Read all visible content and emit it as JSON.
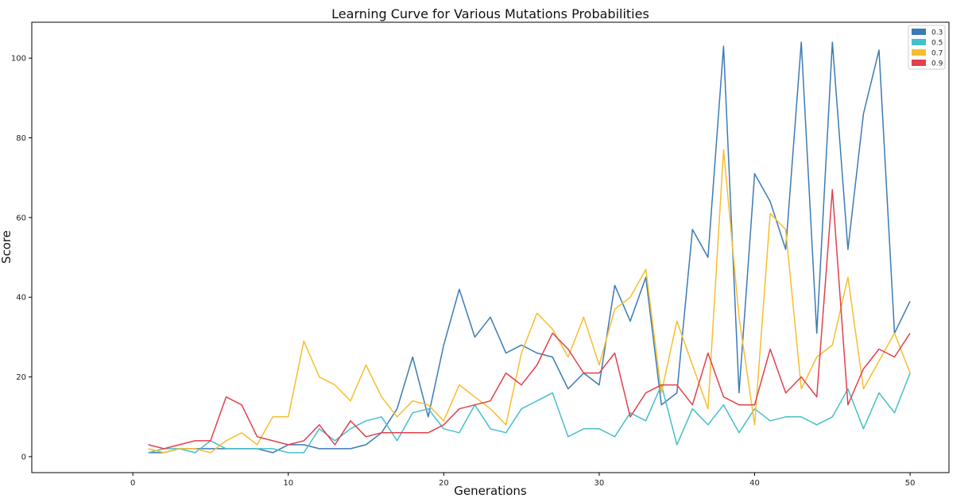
{
  "chart_data": {
    "type": "line",
    "title": "Learning Curve for Various Mutations Probabilities",
    "xlabel": "Generations",
    "ylabel": "Score",
    "xlim": [
      -6.5,
      52.5
    ],
    "ylim": [
      -4,
      109
    ],
    "xticks": [
      0,
      10,
      20,
      30,
      40,
      50
    ],
    "yticks": [
      0,
      20,
      40,
      60,
      80,
      100
    ],
    "grid": false,
    "legend_position": "top-right",
    "x": [
      1,
      2,
      3,
      4,
      5,
      6,
      7,
      8,
      9,
      10,
      11,
      12,
      13,
      14,
      15,
      16,
      17,
      18,
      19,
      20,
      21,
      22,
      23,
      24,
      25,
      26,
      27,
      28,
      29,
      30,
      31,
      32,
      33,
      34,
      35,
      36,
      37,
      38,
      39,
      40,
      41,
      42,
      43,
      44,
      45,
      46,
      47,
      48,
      49,
      50
    ],
    "series": [
      {
        "name": "0.3",
        "color": "#3c7ab5",
        "values": [
          1,
          1,
          2,
          2,
          2,
          2,
          2,
          2,
          1,
          3,
          3,
          2,
          2,
          2,
          3,
          6,
          12,
          25,
          10,
          28,
          42,
          30,
          35,
          26,
          28,
          26,
          25,
          17,
          21,
          18,
          43,
          34,
          45,
          13,
          16,
          57,
          50,
          103,
          16,
          71,
          64,
          52,
          104,
          31,
          104,
          52,
          86,
          102,
          31,
          39
        ]
      },
      {
        "name": "0.5",
        "color": "#45bfcb",
        "values": [
          1,
          2,
          2,
          1,
          4,
          2,
          2,
          2,
          2,
          1,
          1,
          7,
          4,
          7,
          9,
          10,
          4,
          11,
          12,
          7,
          6,
          13,
          7,
          6,
          12,
          14,
          16,
          5,
          7,
          7,
          5,
          11,
          9,
          18,
          3,
          12,
          8,
          13,
          6,
          12,
          9,
          10,
          10,
          8,
          10,
          17,
          7,
          16,
          11,
          21
        ]
      },
      {
        "name": "0.7",
        "color": "#f6be2e",
        "values": [
          2,
          1,
          2,
          2,
          1,
          4,
          6,
          3,
          10,
          10,
          29,
          20,
          18,
          14,
          23,
          15,
          10,
          14,
          13,
          9,
          18,
          15,
          12,
          8,
          26,
          36,
          32,
          25,
          35,
          23,
          37,
          40,
          47,
          16,
          34,
          23,
          12,
          77,
          35,
          8,
          61,
          57,
          17,
          25,
          28,
          45,
          17,
          24,
          31,
          21
        ]
      },
      {
        "name": "0.9",
        "color": "#e2404c",
        "values": [
          3,
          2,
          3,
          4,
          4,
          15,
          13,
          5,
          4,
          3,
          4,
          8,
          3,
          9,
          5,
          6,
          6,
          6,
          6,
          8,
          12,
          13,
          14,
          21,
          18,
          23,
          31,
          27,
          21,
          21,
          26,
          10,
          16,
          18,
          18,
          13,
          26,
          15,
          13,
          13,
          27,
          16,
          20,
          15,
          67,
          13,
          22,
          27,
          25,
          31
        ]
      }
    ]
  }
}
